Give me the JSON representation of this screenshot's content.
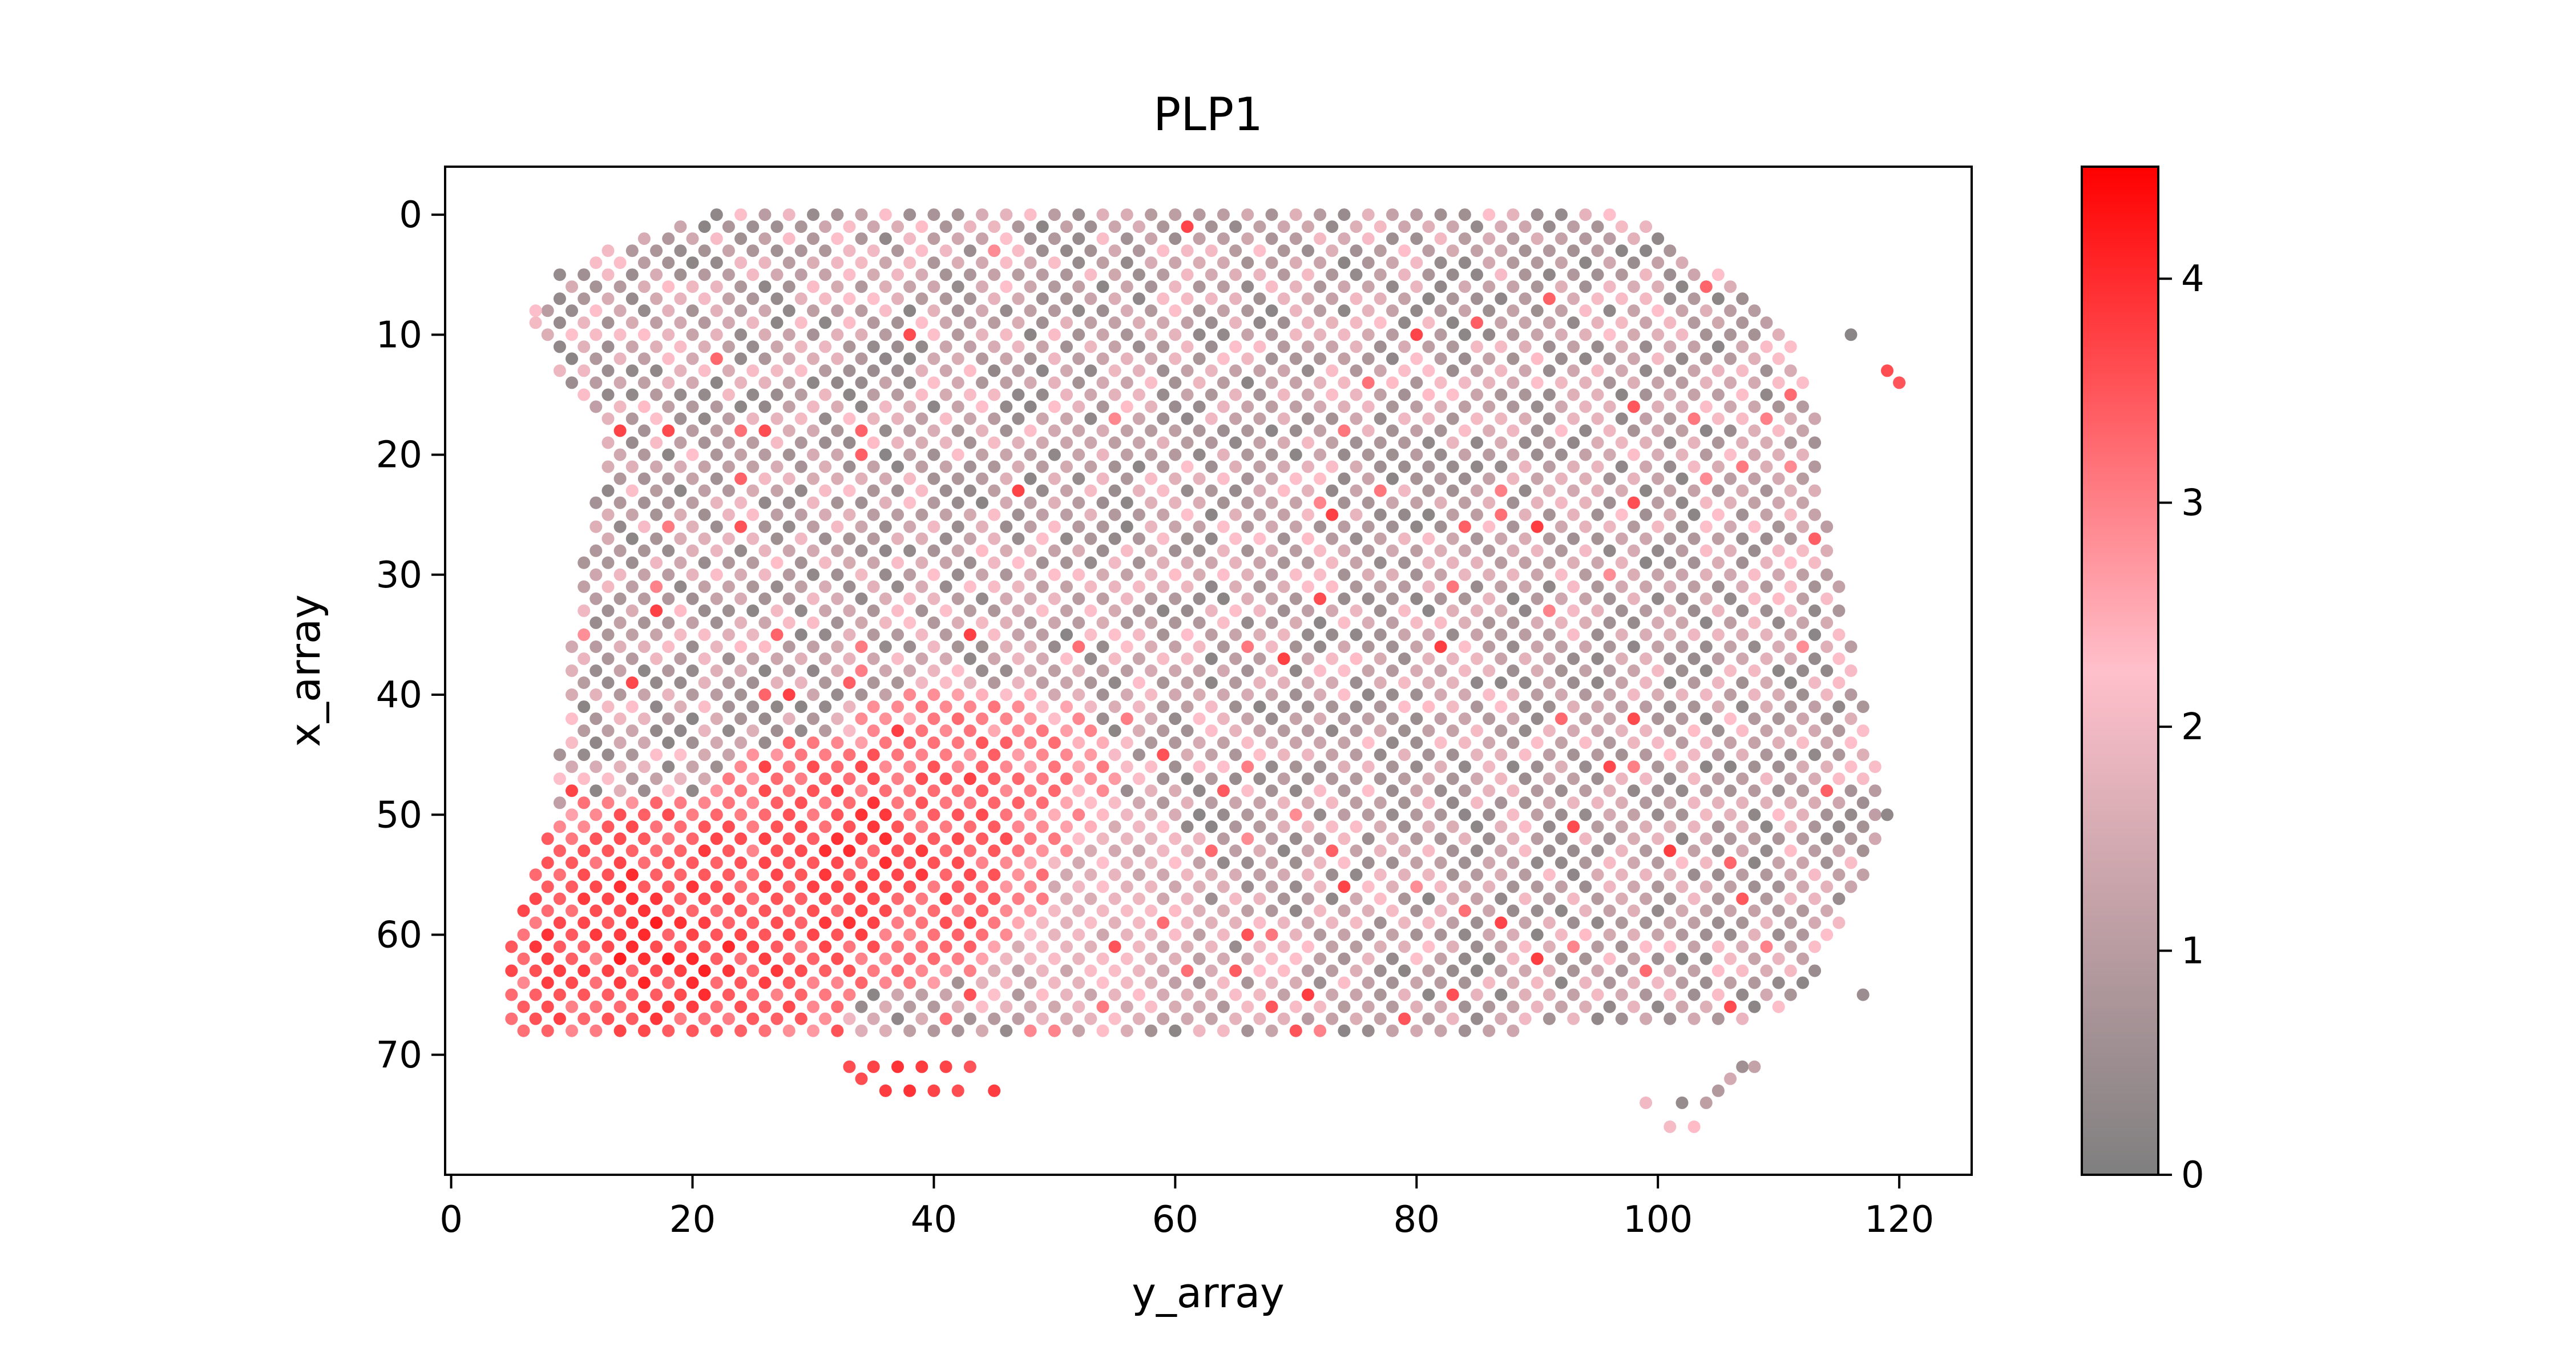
{
  "chart_data": {
    "type": "scatter",
    "title": "PLP1",
    "xlabel": "y_array",
    "ylabel": "x_array",
    "xlim": [
      -0.5,
      126
    ],
    "ylim": [
      80,
      -4
    ],
    "y_inverted": true,
    "xticks": [
      0,
      20,
      40,
      60,
      80,
      100,
      120
    ],
    "xtick_labels": [
      "0",
      "20",
      "40",
      "60",
      "80",
      "100",
      "120"
    ],
    "yticks": [
      0,
      10,
      20,
      30,
      40,
      50,
      60,
      70
    ],
    "ytick_labels": [
      "0",
      "10",
      "20",
      "30",
      "40",
      "50",
      "60",
      "70"
    ],
    "colorbar": {
      "min": 0,
      "max": 4.5,
      "ticks": [
        0,
        1,
        2,
        3,
        4
      ],
      "tick_labels": [
        "0",
        "1",
        "2",
        "3",
        "4"
      ],
      "colors": [
        "#7f7f7f",
        "#ffc0cb",
        "#ff0000"
      ]
    },
    "grid": false,
    "tissue_outline": [
      [
        22,
        0
      ],
      [
        98,
        0
      ],
      [
        104,
        4
      ],
      [
        111,
        10
      ],
      [
        113,
        16
      ],
      [
        114,
        25
      ],
      [
        116,
        34
      ],
      [
        118,
        45
      ],
      [
        119,
        51
      ],
      [
        116,
        58
      ],
      [
        112,
        66
      ],
      [
        108,
        67
      ],
      [
        100,
        68
      ],
      [
        90,
        68
      ],
      [
        80,
        69
      ],
      [
        68,
        69
      ],
      [
        58,
        69
      ],
      [
        46,
        69
      ],
      [
        35,
        69
      ],
      [
        18,
        69
      ],
      [
        5,
        69
      ],
      [
        5,
        60
      ],
      [
        8,
        52
      ],
      [
        9,
        44
      ],
      [
        10,
        36
      ],
      [
        11,
        29
      ],
      [
        12,
        24
      ],
      [
        13,
        19
      ],
      [
        10,
        15
      ],
      [
        7,
        10
      ],
      [
        7,
        8
      ],
      [
        11,
        4
      ],
      [
        15,
        2
      ]
    ],
    "high_zones": [
      {
        "y": 17,
        "x": 60,
        "ry": 18,
        "rx": 12,
        "value": 4.2
      },
      {
        "y": 34,
        "x": 54,
        "ry": 16,
        "rx": 11,
        "value": 4.1
      },
      {
        "y": 43,
        "x": 47,
        "ry": 13,
        "rx": 8,
        "value": 3.6
      },
      {
        "y": 54,
        "x": 58,
        "ry": 9,
        "rx": 10,
        "value": 2.3
      }
    ],
    "extra_points": [
      {
        "y": 116,
        "x": 10,
        "value": 0.2
      },
      {
        "y": 119,
        "x": 13,
        "value": 3.6
      },
      {
        "y": 120,
        "x": 14,
        "value": 3.5
      },
      {
        "y": 33,
        "x": 71,
        "value": 3.6
      },
      {
        "y": 35,
        "x": 71,
        "value": 3.7
      },
      {
        "y": 37,
        "x": 71,
        "value": 3.9
      },
      {
        "y": 39,
        "x": 71,
        "value": 3.8
      },
      {
        "y": 41,
        "x": 71,
        "value": 3.7
      },
      {
        "y": 43,
        "x": 71,
        "value": 3.5
      },
      {
        "y": 34,
        "x": 72,
        "value": 3.6
      },
      {
        "y": 36,
        "x": 73,
        "value": 3.8
      },
      {
        "y": 38,
        "x": 73,
        "value": 3.9
      },
      {
        "y": 40,
        "x": 73,
        "value": 3.7
      },
      {
        "y": 42,
        "x": 73,
        "value": 3.6
      },
      {
        "y": 45,
        "x": 73,
        "value": 3.8
      },
      {
        "y": 99,
        "x": 74,
        "value": 2.0
      },
      {
        "y": 102,
        "x": 74,
        "value": 0.4
      },
      {
        "y": 104,
        "x": 74,
        "value": 1.1
      },
      {
        "y": 101,
        "x": 76,
        "value": 2.1
      },
      {
        "y": 103,
        "x": 76,
        "value": 2.3
      },
      {
        "y": 105,
        "x": 73,
        "value": 0.9
      },
      {
        "y": 106,
        "x": 72,
        "value": 1.5
      },
      {
        "y": 107,
        "x": 71,
        "value": 0.6
      },
      {
        "y": 108,
        "x": 71,
        "value": 1.2
      },
      {
        "y": 117,
        "x": 65,
        "value": 0.5
      },
      {
        "y": 119,
        "x": 50,
        "value": 0.3
      },
      {
        "y": 9,
        "x": 5,
        "value": 0.4
      },
      {
        "y": 11,
        "x": 5,
        "value": 0.6
      },
      {
        "y": 7,
        "x": 8,
        "value": 2.2
      }
    ]
  }
}
